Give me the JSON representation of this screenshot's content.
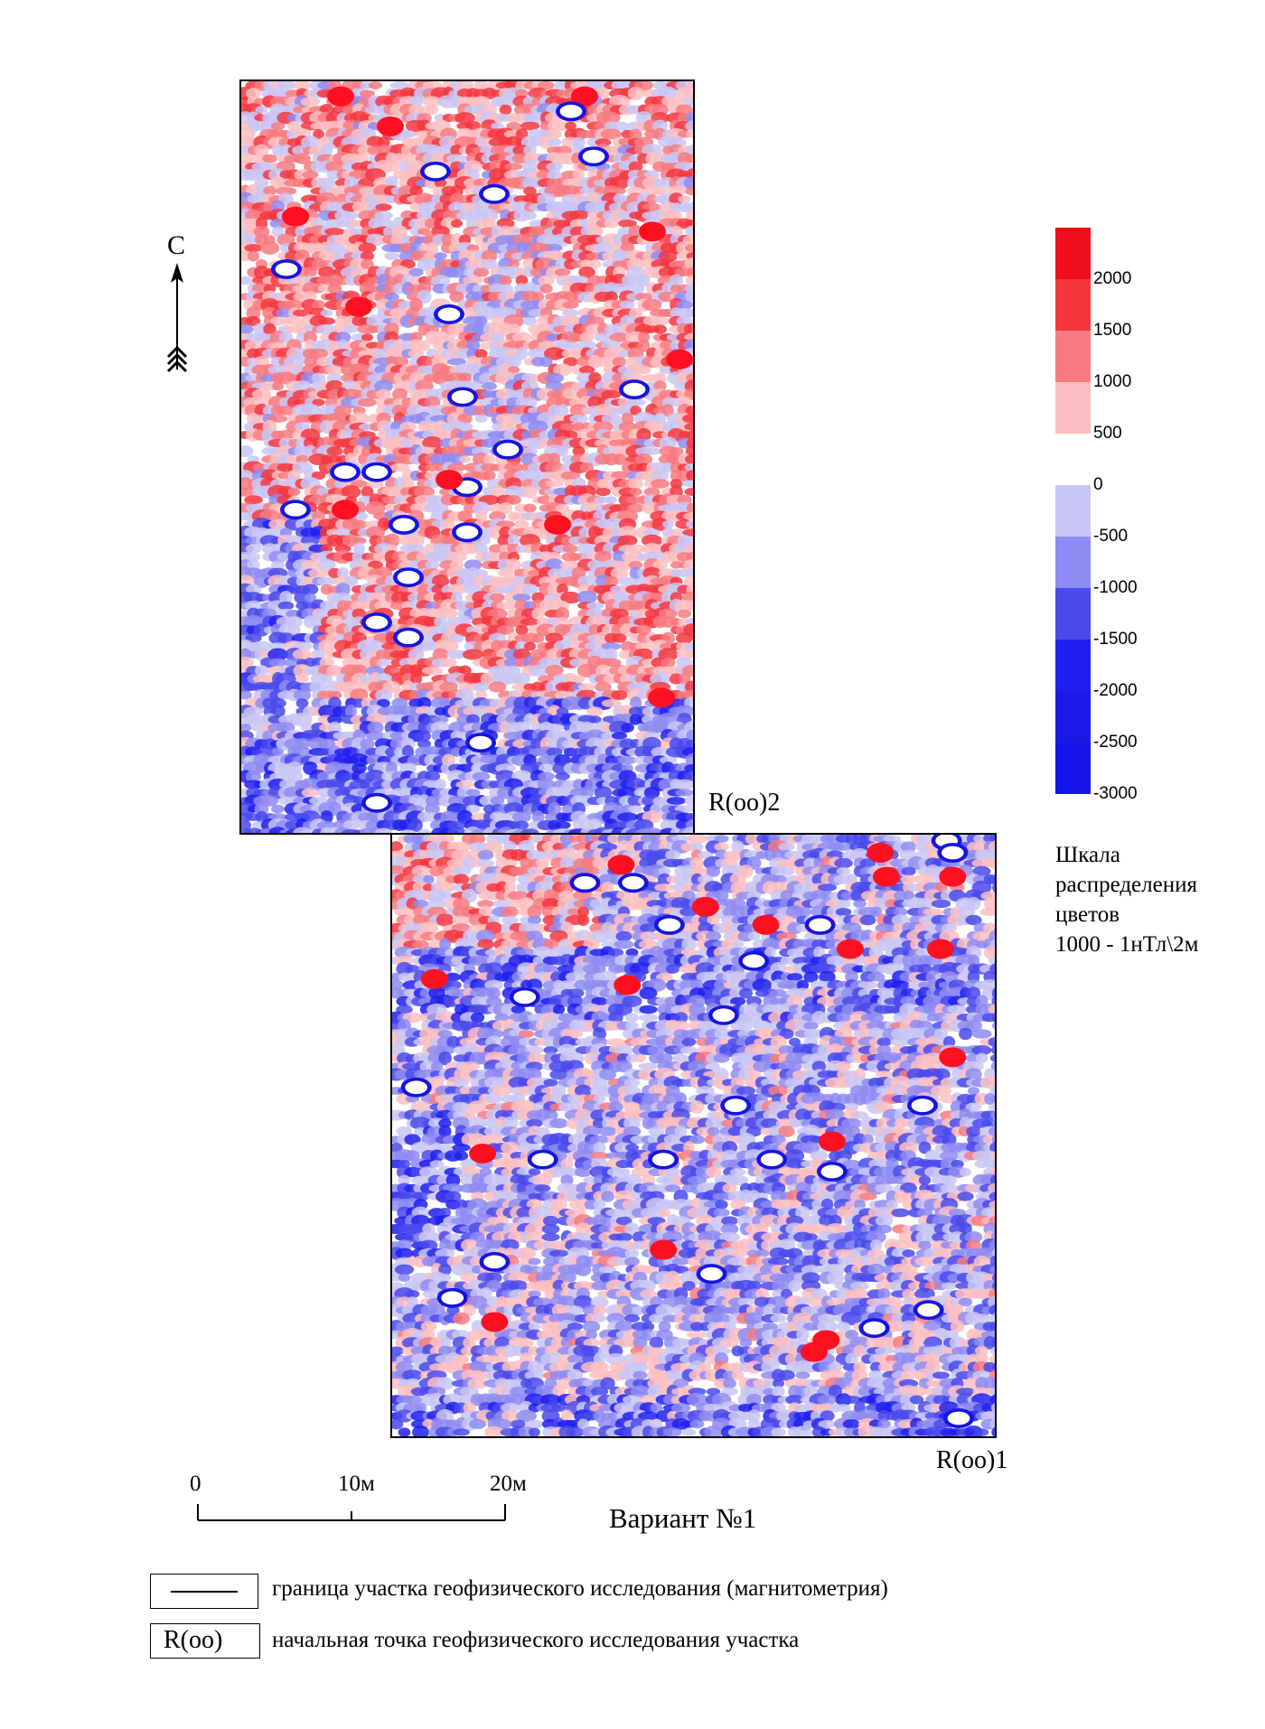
{
  "north_arrow": {
    "letter": "С"
  },
  "survey_areas": [
    {
      "id": "area-2",
      "start_label": "R(oo)2"
    },
    {
      "id": "area-1",
      "start_label": "R(oo)1"
    }
  ],
  "color_scale": {
    "unit_caption": [
      "Шкала",
      "распределения",
      "цветов",
      "1000 - 1нТл\\2м"
    ],
    "bands": [
      {
        "color": "#ef0f1a"
      },
      {
        "color": "#f5363f"
      },
      {
        "color": "#f77a80"
      },
      {
        "color": "#fbbec1"
      },
      {
        "color": "#ffffff"
      },
      {
        "color": "#c9c5f5"
      },
      {
        "color": "#8e8bf2"
      },
      {
        "color": "#4949ec"
      },
      {
        "color": "#1f1ff0"
      },
      {
        "color": "#1a1ae6"
      },
      {
        "color": "#1515ea"
      }
    ],
    "tick_labels": [
      "2000",
      "1500",
      "1000",
      "500",
      "0",
      "-500",
      "-1000",
      "-1500",
      "-2000",
      "-2500",
      "-3000"
    ]
  },
  "scale_bar": {
    "labels": [
      "0",
      "10м",
      "20м"
    ],
    "title": "Вариант №1"
  },
  "legend": {
    "boundary_text": "граница участка геофизического исследования (магнитометрия)",
    "start_point_symbol": "R(oo)",
    "start_point_text": "начальная точка геофизического исследования участка"
  }
}
